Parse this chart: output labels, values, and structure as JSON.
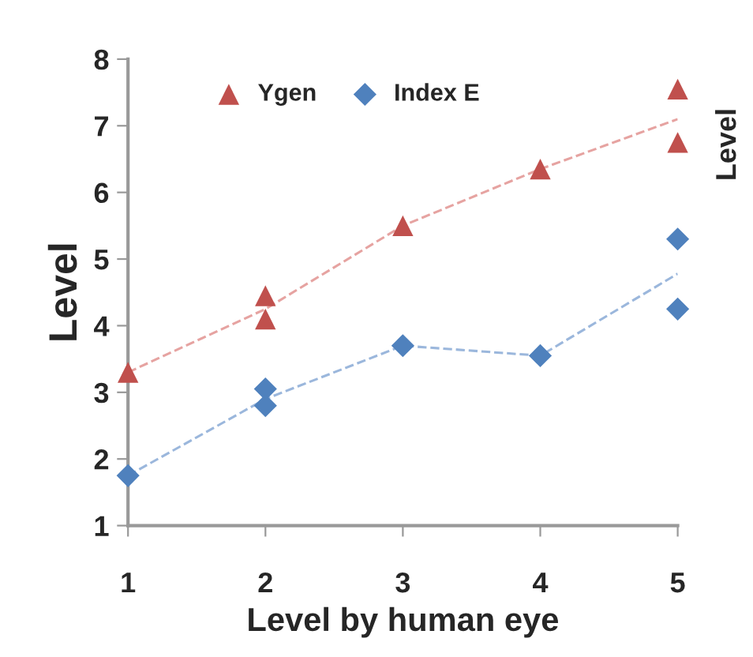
{
  "chart_data": {
    "type": "scatter",
    "xlabel": "Level by human eye",
    "ylabel": "Level",
    "xlim": [
      1,
      5
    ],
    "xticks": [
      1,
      2,
      3,
      4,
      5
    ],
    "ylim": [
      1,
      8
    ],
    "yticks": [
      1,
      2,
      3,
      4,
      5,
      6,
      7,
      8
    ],
    "grid": false,
    "legend": "top left",
    "annotations": [
      "Level"
    ],
    "series": [
      {
        "name": "Ygen",
        "marker": "triangle",
        "color": "#c0504d",
        "x": [
          1,
          2,
          2,
          3,
          4,
          5,
          5
        ],
        "values": [
          3.3,
          4.45,
          4.1,
          5.5,
          6.35,
          7.55,
          6.75
        ]
      },
      {
        "name": "Index E",
        "marker": "diamond",
        "color": "#4f81bd",
        "x": [
          1,
          2,
          2,
          3,
          4,
          5,
          5
        ],
        "values": [
          1.75,
          3.05,
          2.8,
          3.7,
          3.55,
          5.3,
          4.25
        ]
      },
      {
        "type": "line",
        "line_style": "dashed",
        "color": "#e6a3a1",
        "x": [
          1,
          2,
          3,
          4,
          5
        ],
        "values": [
          3.3,
          4.25,
          5.5,
          6.35,
          7.1
        ]
      },
      {
        "type": "line",
        "line_style": "dashed",
        "color": "#9bb7dc",
        "x": [
          1,
          2,
          3,
          4,
          5
        ],
        "values": [
          1.75,
          2.9,
          3.7,
          3.55,
          4.78
        ]
      }
    ]
  }
}
